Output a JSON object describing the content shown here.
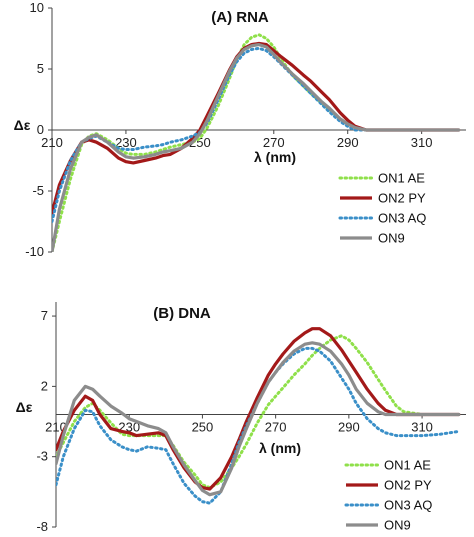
{
  "chart_data": [
    {
      "type": "line",
      "title": "(A) RNA",
      "xlabel": "λ (nm)",
      "ylabel": "Δε",
      "xlim": [
        210,
        322
      ],
      "ylim": [
        -10,
        10
      ],
      "x_ticks": [
        210,
        230,
        250,
        270,
        290,
        310
      ],
      "y_ticks": [
        -10,
        -5,
        0,
        5,
        10
      ],
      "grid": false,
      "legend_position": "bottom-right",
      "series": [
        {
          "name": "ON1 AE",
          "color": "#8fe04a",
          "dash": "dotted",
          "x": [
            210,
            212,
            215,
            218,
            220,
            222,
            225,
            228,
            230,
            232,
            235,
            238,
            240,
            242,
            245,
            248,
            250,
            252,
            255,
            258,
            260,
            262,
            264,
            266,
            268,
            270,
            272,
            275,
            278,
            280,
            283,
            285,
            288,
            290,
            292,
            295,
            298,
            300,
            305,
            310,
            315,
            320
          ],
          "y": [
            -10.0,
            -7.5,
            -4.0,
            -1.2,
            -0.5,
            -0.3,
            -0.8,
            -1.5,
            -1.9,
            -2.0,
            -2.0,
            -1.8,
            -1.6,
            -1.4,
            -1.2,
            -1.0,
            -0.7,
            0.2,
            2.0,
            4.2,
            5.8,
            7.0,
            7.6,
            7.8,
            7.5,
            6.8,
            5.8,
            4.5,
            3.6,
            3.0,
            2.2,
            1.7,
            0.9,
            0.5,
            0.2,
            0.0,
            0.0,
            0.0,
            0.0,
            0.0,
            0.0,
            0.0
          ]
        },
        {
          "name": "ON2 PY",
          "color": "#a31919",
          "dash": "solid",
          "x": [
            210,
            212,
            215,
            218,
            220,
            222,
            225,
            228,
            230,
            232,
            235,
            238,
            240,
            242,
            245,
            248,
            250,
            252,
            255,
            258,
            260,
            262,
            264,
            266,
            268,
            270,
            272,
            275,
            278,
            280,
            283,
            285,
            288,
            290,
            292,
            295,
            298,
            300,
            305,
            310,
            315,
            320
          ],
          "y": [
            -6.8,
            -4.5,
            -2.5,
            -1.0,
            -0.8,
            -1.0,
            -1.5,
            -2.3,
            -2.6,
            -2.7,
            -2.5,
            -2.3,
            -2.1,
            -2.0,
            -1.5,
            -0.7,
            0.0,
            1.2,
            3.0,
            4.9,
            6.0,
            6.7,
            7.0,
            7.1,
            7.0,
            6.5,
            6.0,
            5.3,
            4.5,
            4.0,
            3.1,
            2.5,
            1.4,
            0.8,
            0.3,
            0.0,
            0.0,
            0.0,
            0.0,
            0.0,
            0.0,
            0.0
          ]
        },
        {
          "name": "ON3 AQ",
          "color": "#3a8fc8",
          "dash": "dotted",
          "x": [
            210,
            212,
            215,
            218,
            220,
            222,
            225,
            228,
            230,
            232,
            235,
            238,
            240,
            242,
            245,
            248,
            250,
            252,
            255,
            258,
            260,
            262,
            264,
            266,
            268,
            270,
            272,
            275,
            278,
            280,
            283,
            285,
            288,
            290,
            292,
            295,
            298,
            300,
            305,
            310,
            315,
            320
          ],
          "y": [
            -7.5,
            -5.0,
            -2.5,
            -1.0,
            -0.7,
            -0.5,
            -1.0,
            -1.5,
            -1.6,
            -1.6,
            -1.4,
            -1.3,
            -1.2,
            -1.0,
            -0.8,
            -0.5,
            -0.2,
            0.6,
            2.5,
            4.5,
            5.6,
            6.3,
            6.6,
            6.7,
            6.5,
            6.0,
            5.4,
            4.5,
            3.6,
            3.0,
            2.1,
            1.5,
            0.7,
            0.3,
            0.0,
            0.0,
            0.0,
            0.0,
            0.0,
            0.0,
            0.0,
            0.0
          ]
        },
        {
          "name": "ON9",
          "color": "#8c8c8c",
          "dash": "solid",
          "x": [
            210,
            212,
            215,
            218,
            220,
            222,
            225,
            228,
            230,
            232,
            235,
            238,
            240,
            242,
            245,
            248,
            250,
            252,
            255,
            258,
            260,
            262,
            264,
            266,
            268,
            270,
            272,
            275,
            278,
            280,
            283,
            285,
            288,
            290,
            292,
            295,
            298,
            300,
            305,
            310,
            315,
            320
          ],
          "y": [
            -10.0,
            -6.5,
            -3.2,
            -1.0,
            -0.6,
            -0.4,
            -1.0,
            -1.8,
            -2.2,
            -2.3,
            -2.2,
            -2.0,
            -1.8,
            -1.7,
            -1.5,
            -1.0,
            -0.3,
            0.8,
            2.8,
            4.8,
            5.9,
            6.6,
            6.9,
            7.0,
            6.8,
            6.2,
            5.5,
            4.6,
            3.8,
            3.2,
            2.3,
            1.8,
            0.9,
            0.5,
            0.2,
            0.0,
            0.0,
            0.0,
            0.0,
            0.0,
            0.0,
            0.0
          ]
        }
      ]
    },
    {
      "type": "line",
      "title": "(B) DNA",
      "xlabel": "λ (nm)",
      "ylabel": "Δε",
      "xlim": [
        210,
        322
      ],
      "ylim": [
        -8,
        8
      ],
      "x_ticks": [
        210,
        230,
        250,
        270,
        290,
        310
      ],
      "y_ticks": [
        -8,
        -3,
        2,
        7
      ],
      "grid": false,
      "legend_position": "bottom-right",
      "series": [
        {
          "name": "ON1 AE",
          "color": "#8fe04a",
          "dash": "dotted",
          "x": [
            210,
            212,
            215,
            218,
            220,
            222,
            225,
            228,
            230,
            232,
            235,
            238,
            240,
            242,
            245,
            248,
            250,
            252,
            255,
            258,
            260,
            262,
            265,
            268,
            270,
            272,
            275,
            278,
            280,
            282,
            285,
            288,
            290,
            292,
            295,
            298,
            300,
            303,
            305,
            310,
            315,
            320
          ],
          "y": [
            -3.0,
            -2.0,
            -0.5,
            0.5,
            0.8,
            0.3,
            -0.6,
            -1.4,
            -1.5,
            -1.5,
            -1.5,
            -1.5,
            -1.5,
            -2.2,
            -3.4,
            -4.3,
            -5.0,
            -5.2,
            -4.8,
            -3.8,
            -3.0,
            -2.1,
            -0.6,
            0.7,
            1.3,
            1.9,
            2.8,
            3.6,
            4.2,
            4.7,
            5.3,
            5.6,
            5.3,
            4.7,
            3.7,
            2.5,
            1.7,
            0.6,
            0.2,
            0.0,
            0.0,
            0.0
          ]
        },
        {
          "name": "ON2 PY",
          "color": "#a31919",
          "dash": "solid",
          "x": [
            210,
            212,
            215,
            218,
            220,
            222,
            225,
            228,
            230,
            232,
            235,
            238,
            240,
            242,
            245,
            248,
            250,
            252,
            255,
            258,
            260,
            262,
            265,
            268,
            270,
            272,
            275,
            278,
            280,
            282,
            285,
            288,
            290,
            292,
            295,
            298,
            300,
            303,
            305,
            310,
            315,
            320
          ],
          "y": [
            -2.5,
            -1.2,
            0.3,
            1.3,
            1.0,
            0.0,
            -1.0,
            -1.2,
            -1.3,
            -1.5,
            -1.4,
            -1.3,
            -1.5,
            -2.5,
            -3.8,
            -4.8,
            -5.2,
            -5.3,
            -4.5,
            -3.0,
            -1.8,
            -0.5,
            1.2,
            2.8,
            3.6,
            4.3,
            5.2,
            5.8,
            6.1,
            6.1,
            5.6,
            4.6,
            3.8,
            3.0,
            1.8,
            0.8,
            0.3,
            0.0,
            0.0,
            0.0,
            0.0,
            0.0
          ]
        },
        {
          "name": "ON3 AQ",
          "color": "#3a8fc8",
          "dash": "dotted",
          "x": [
            210,
            212,
            215,
            218,
            220,
            222,
            225,
            228,
            230,
            232,
            235,
            238,
            240,
            242,
            245,
            248,
            250,
            252,
            255,
            258,
            260,
            262,
            265,
            268,
            270,
            272,
            275,
            278,
            280,
            282,
            285,
            288,
            290,
            292,
            295,
            298,
            300,
            303,
            305,
            310,
            315,
            320
          ],
          "y": [
            -5.0,
            -3.0,
            -1.0,
            0.3,
            0.2,
            -0.8,
            -1.8,
            -2.3,
            -2.5,
            -2.6,
            -2.3,
            -2.4,
            -2.5,
            -3.5,
            -4.9,
            -5.8,
            -6.2,
            -6.3,
            -5.5,
            -3.5,
            -2.0,
            -0.8,
            0.8,
            2.3,
            3.0,
            3.6,
            4.3,
            4.7,
            4.7,
            4.5,
            3.8,
            2.6,
            1.8,
            0.8,
            -0.3,
            -1.0,
            -1.3,
            -1.5,
            -1.5,
            -1.5,
            -1.4,
            -1.2
          ]
        },
        {
          "name": "ON9",
          "color": "#8c8c8c",
          "dash": "solid",
          "x": [
            210,
            212,
            215,
            218,
            220,
            222,
            225,
            228,
            230,
            232,
            235,
            238,
            240,
            242,
            245,
            248,
            250,
            252,
            255,
            258,
            260,
            262,
            265,
            268,
            270,
            272,
            275,
            278,
            280,
            282,
            285,
            288,
            290,
            292,
            295,
            298,
            300,
            303,
            305,
            310,
            315,
            320
          ],
          "y": [
            -3.5,
            -1.5,
            1.0,
            2.0,
            1.8,
            1.3,
            0.6,
            0.1,
            -0.3,
            -0.5,
            -0.8,
            -1.0,
            -1.3,
            -2.3,
            -3.6,
            -4.7,
            -5.4,
            -5.7,
            -5.5,
            -3.8,
            -2.3,
            -1.0,
            0.8,
            2.3,
            3.0,
            3.7,
            4.5,
            5.0,
            5.1,
            5.0,
            4.5,
            3.6,
            2.8,
            1.8,
            0.8,
            0.2,
            0.0,
            0.0,
            0.0,
            0.0,
            0.0,
            0.0
          ]
        }
      ]
    }
  ]
}
